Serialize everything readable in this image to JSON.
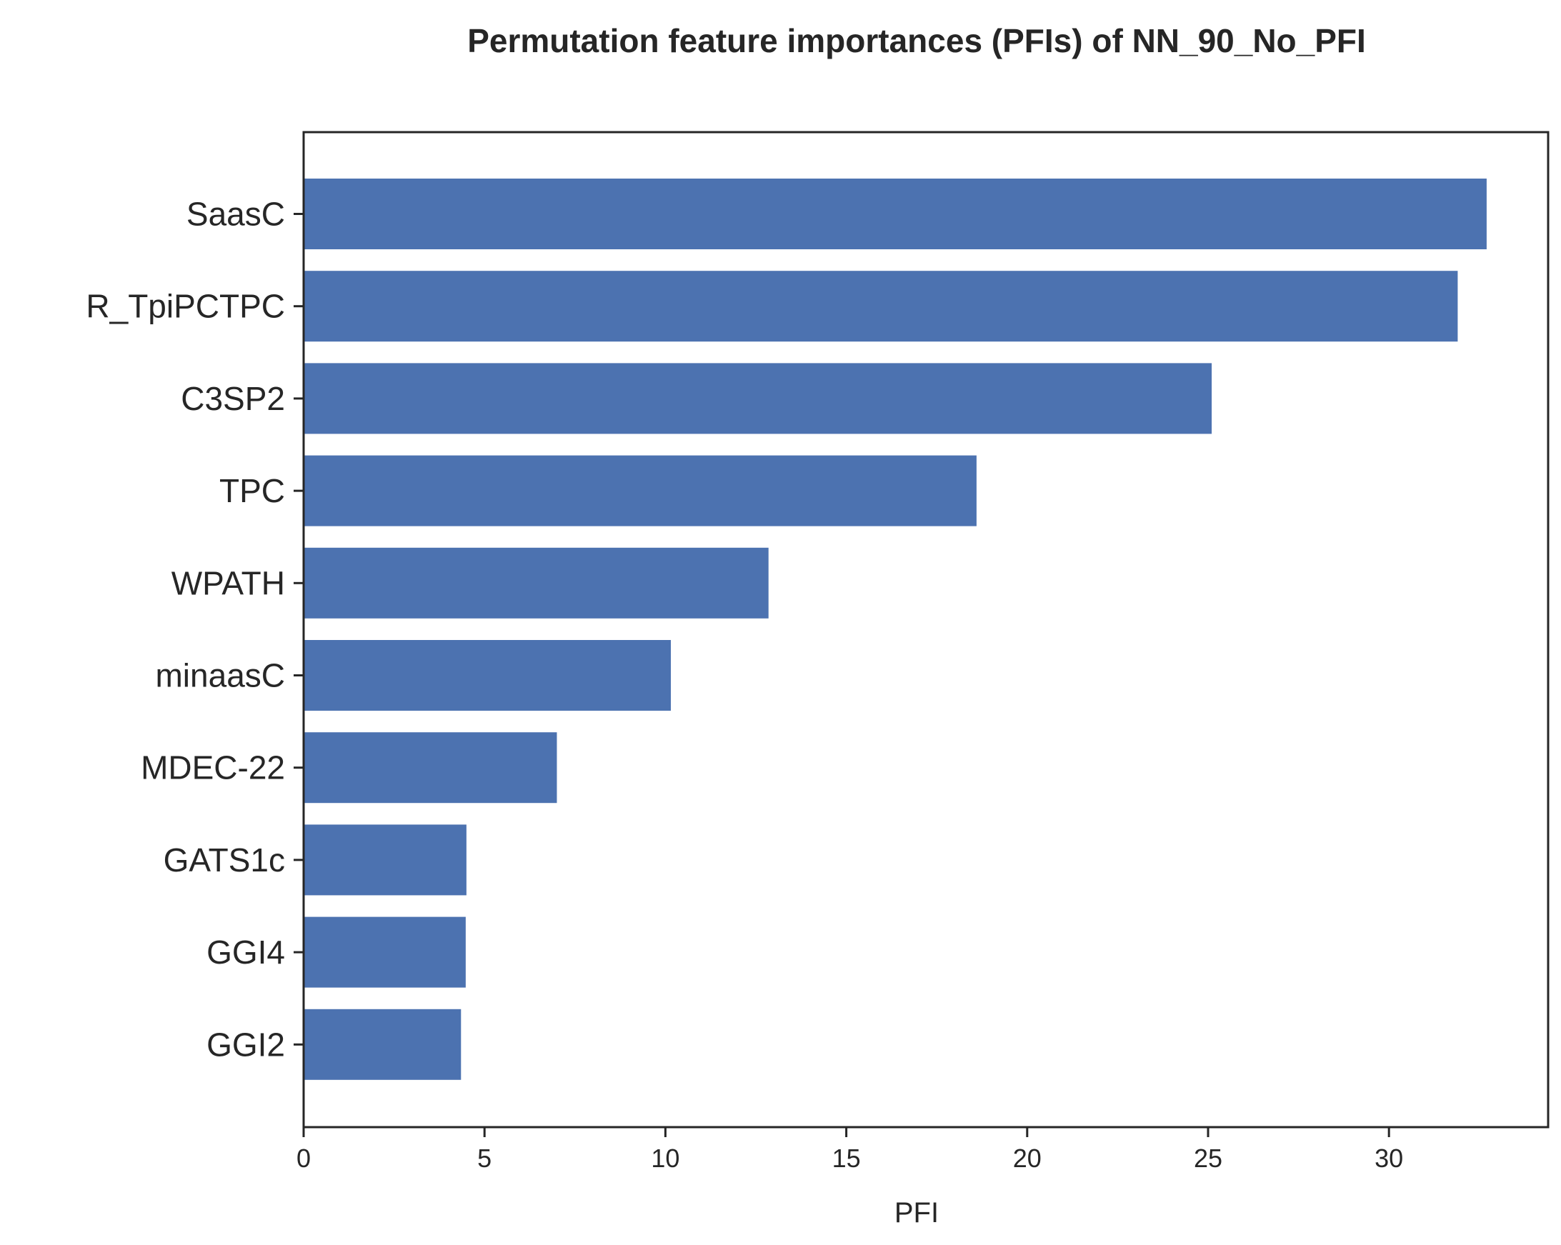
{
  "chart_data": {
    "type": "bar",
    "orientation": "horizontal",
    "title": "Permutation feature importances (PFIs) of NN_90_No_PFI",
    "xlabel": "PFI",
    "ylabel": "",
    "categories": [
      "SaasC",
      "R_TpiPCTPC",
      "C3SP2",
      "TPC",
      "WPATH",
      "minaasC",
      "MDEC-22",
      "GATS1c",
      "GGI4",
      "GGI2"
    ],
    "values": [
      32.7,
      31.9,
      25.1,
      18.6,
      12.85,
      10.15,
      7.0,
      4.5,
      4.48,
      4.35
    ],
    "xlim": [
      0,
      34.4
    ],
    "xticks": [
      0,
      5,
      10,
      15,
      20,
      25,
      30
    ],
    "bar_color": "#4c72b0",
    "grid": false,
    "legend": "none"
  }
}
